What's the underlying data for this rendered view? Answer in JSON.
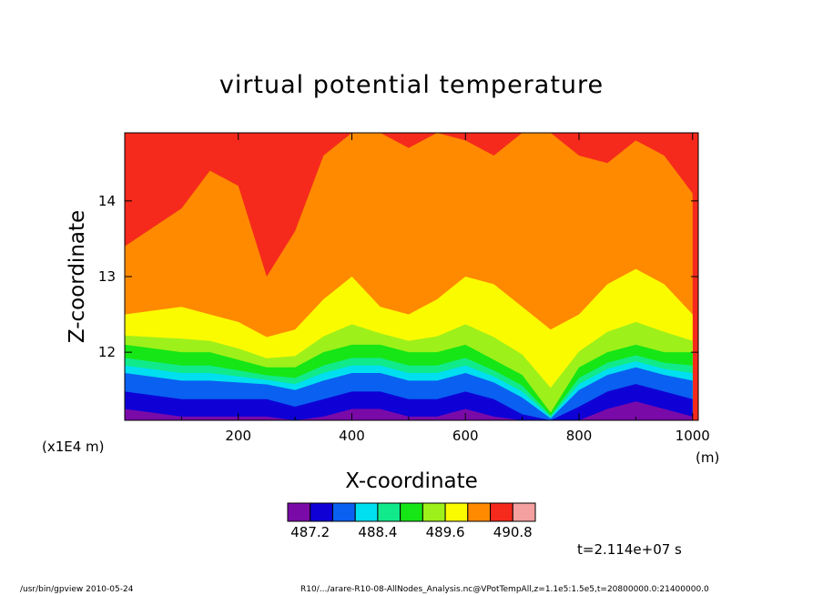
{
  "chart_data": {
    "type": "heatmap",
    "title": "virtual potential temperature",
    "xlabel": "X-coordinate",
    "ylabel": "Z-coordinate",
    "x_unit": "(m)",
    "y_unit": "(x1E4 m)",
    "xlim": [
      0,
      1010
    ],
    "ylim": [
      11.1,
      14.9
    ],
    "x_ticks": [
      "200",
      "400",
      "600",
      "800",
      "1000"
    ],
    "y_ticks": [
      "12",
      "13",
      "14"
    ],
    "x_tick_values": [
      200,
      400,
      600,
      800,
      1000
    ],
    "y_tick_values": [
      12,
      13,
      14
    ],
    "colorbar": {
      "colors": [
        "#7a0aa8",
        "#0f00d6",
        "#0a60f0",
        "#00dff0",
        "#11ea8a",
        "#16e615",
        "#9ef01a",
        "#fbfb00",
        "#ff8a00",
        "#f52a1c",
        "#f4a0a0"
      ],
      "labels": [
        "487.2",
        "488.4",
        "489.6",
        "490.8"
      ],
      "levels": [
        486.9,
        487.2,
        487.5,
        487.8,
        488.1,
        488.4,
        488.7,
        489.0,
        489.3,
        489.6,
        489.9,
        490.2,
        490.5,
        490.8
      ]
    },
    "time_label": "t=2.114e+07 s",
    "approx_boundaries": {
      "x": [
        0,
        100,
        150,
        200,
        250,
        300,
        350,
        400,
        450,
        500,
        550,
        600,
        650,
        700,
        750,
        800,
        850,
        900,
        950,
        1000
      ],
      "orange_red_top": [
        13.4,
        13.9,
        14.4,
        14.2,
        13.0,
        13.6,
        14.6,
        14.9,
        14.9,
        14.7,
        14.9,
        14.8,
        14.6,
        14.9,
        14.9,
        14.6,
        14.5,
        14.8,
        14.6,
        14.1
      ],
      "yellow_orange": [
        12.5,
        12.6,
        12.5,
        12.4,
        12.2,
        12.3,
        12.7,
        13.0,
        12.6,
        12.5,
        12.7,
        13.0,
        12.9,
        12.6,
        12.3,
        12.5,
        12.9,
        13.1,
        12.9,
        12.5
      ],
      "green_yellow": [
        12.1,
        12.0,
        12.0,
        11.9,
        11.8,
        11.8,
        12.0,
        12.1,
        12.1,
        12.0,
        12.0,
        12.1,
        11.9,
        11.7,
        11.2,
        11.8,
        12.0,
        12.1,
        12.0,
        12.0
      ],
      "blue_green": [
        11.6,
        11.5,
        11.5,
        11.5,
        11.5,
        11.4,
        11.5,
        11.6,
        11.6,
        11.5,
        11.5,
        11.6,
        11.5,
        11.3,
        11.1,
        11.4,
        11.6,
        11.7,
        11.6,
        11.5
      ]
    }
  },
  "footer": {
    "left": "/usr/bin/gpview   2010-05-24",
    "right": "R10/.../arare-R10-08-AllNodes_Analysis.nc@VPotTempAll,z=1.1e5:1.5e5,t=20800000.0:21400000.0"
  }
}
